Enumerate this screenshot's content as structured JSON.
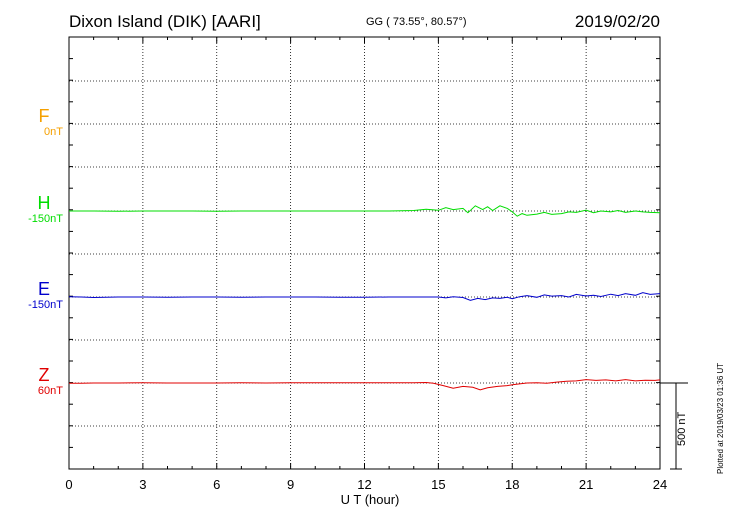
{
  "header": {
    "title": "Dixon Island (DIK)  [AARI]",
    "coords": "GG ( 73.55°,  80.57°)",
    "date": "2019/02/20"
  },
  "channels": [
    {
      "key": "F",
      "name": "F",
      "baseline": "0nT",
      "color": "#f5a000"
    },
    {
      "key": "H",
      "name": "H",
      "baseline": "-150nT",
      "color": "#00dd00"
    },
    {
      "key": "E",
      "name": "E",
      "baseline": "-150nT",
      "color": "#0000cc"
    },
    {
      "key": "Z",
      "name": "Z",
      "baseline": "60nT",
      "color": "#e00000"
    }
  ],
  "scale_bar": {
    "label": "500 nT",
    "value_nT": 500
  },
  "footer": {
    "plotted": "Plotted at 2019/03/23 01:36 UT"
  },
  "chart_data": {
    "type": "line",
    "xlabel": "U T (hour)",
    "xlim": [
      0,
      24
    ],
    "xticks": [
      "0",
      "3",
      "6",
      "9",
      "12",
      "15",
      "18",
      "21",
      "24"
    ],
    "grid": true,
    "series": [
      {
        "name": "H",
        "color": "#00dd00",
        "x": [
          0,
          1,
          2,
          3,
          4,
          5,
          6,
          7,
          8,
          9,
          10,
          11,
          12,
          13,
          14,
          14.5,
          15,
          15.3,
          15.6,
          16,
          16.2,
          16.5,
          16.8,
          17,
          17.2,
          17.5,
          17.8,
          18,
          18.2,
          18.4,
          18.6,
          19,
          19.3,
          19.6,
          20,
          20.3,
          20.6,
          21,
          21.3,
          21.6,
          22,
          22.3,
          22.6,
          23,
          23.3,
          23.6,
          24
        ],
        "y": [
          0,
          0,
          -2,
          0,
          0,
          0,
          -2,
          0,
          0,
          0,
          0,
          0,
          0,
          0,
          3,
          10,
          4,
          20,
          8,
          15,
          -10,
          30,
          8,
          25,
          3,
          30,
          15,
          -5,
          -30,
          -15,
          -25,
          -18,
          -8,
          -20,
          -15,
          -5,
          -8,
          5,
          -10,
          0,
          -5,
          3,
          -8,
          0,
          -5,
          -8,
          -10
        ]
      },
      {
        "name": "E",
        "color": "#0000cc",
        "x": [
          0,
          0.5,
          1,
          2,
          3,
          4,
          5,
          6,
          7,
          8,
          9,
          10,
          11,
          12,
          13,
          14,
          14.5,
          15,
          15.3,
          15.6,
          16,
          16.3,
          16.6,
          16.9,
          17.2,
          17.5,
          17.8,
          18,
          18.3,
          18.6,
          19,
          19.3,
          19.6,
          20,
          20.3,
          20.6,
          21,
          21.3,
          21.6,
          22,
          22.3,
          22.6,
          23,
          23.3,
          23.6,
          24
        ],
        "y": [
          2,
          0,
          -3,
          0,
          0,
          -2,
          0,
          0,
          -2,
          0,
          0,
          0,
          -1,
          -1,
          0,
          0,
          0,
          0,
          -5,
          2,
          -3,
          -20,
          -8,
          -15,
          -5,
          -8,
          -2,
          -10,
          2,
          8,
          -2,
          12,
          5,
          8,
          0,
          15,
          6,
          10,
          3,
          16,
          8,
          20,
          10,
          25,
          15,
          20
        ]
      },
      {
        "name": "Z",
        "color": "#e00000",
        "x": [
          0,
          0.5,
          1,
          2,
          3,
          4,
          5,
          6,
          7,
          8,
          9,
          10,
          11,
          12,
          13,
          14,
          14.5,
          14.8,
          15.2,
          15.6,
          16,
          16.4,
          16.7,
          17,
          17.4,
          17.8,
          18,
          18.3,
          18.6,
          19,
          19.4,
          19.8,
          20.2,
          20.6,
          21,
          21.4,
          21.8,
          22.2,
          22.6,
          23,
          23.4,
          23.8,
          24
        ],
        "y": [
          -2,
          -1,
          0,
          0,
          1,
          0,
          0,
          0,
          1,
          0,
          1,
          1,
          1,
          1,
          1,
          2,
          3,
          -2,
          -15,
          -30,
          -20,
          -25,
          -40,
          -28,
          -20,
          -15,
          -10,
          -5,
          0,
          2,
          -2,
          5,
          10,
          12,
          20,
          15,
          18,
          12,
          20,
          12,
          16,
          15,
          18
        ]
      }
    ]
  }
}
